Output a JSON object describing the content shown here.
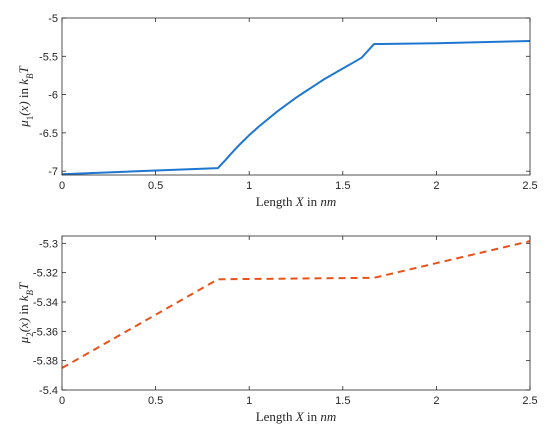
{
  "chart_data": [
    {
      "type": "line",
      "title": "",
      "xlabel": {
        "prefix": "Length ",
        "var": "X",
        "mid": " in ",
        "unit": "nm"
      },
      "ylabel": {
        "func": "μ",
        "sub": "1",
        "arg": "(x)",
        "mid": " in ",
        "k": "k",
        "ksub": "B",
        "T": "T"
      },
      "xlim": [
        0,
        2.5
      ],
      "ylim": [
        -7.05,
        -5
      ],
      "xticks": [
        0,
        0.5,
        1,
        1.5,
        2,
        2.5
      ],
      "xtick_labels": [
        "0",
        "0.5",
        "1",
        "1.5",
        "2",
        "2.5"
      ],
      "yticks": [
        -7,
        -6.5,
        -6,
        -5.5,
        -5
      ],
      "ytick_labels": [
        "-7",
        "-6.5",
        "-6",
        "-5.5",
        "-5"
      ],
      "grid": false,
      "series": [
        {
          "color": "#1f77d0",
          "dash": "solid",
          "x": [
            0,
            0.833,
            0.875,
            0.9,
            0.95,
            1.0,
            1.05,
            1.1,
            1.15,
            1.2,
            1.25,
            1.3,
            1.35,
            1.4,
            1.45,
            1.5,
            1.55,
            1.6,
            1.667,
            2.0,
            2.5
          ],
          "y": [
            -7.04,
            -6.96,
            -6.85,
            -6.78,
            -6.65,
            -6.53,
            -6.42,
            -6.32,
            -6.22,
            -6.13,
            -6.04,
            -5.96,
            -5.88,
            -5.8,
            -5.73,
            -5.66,
            -5.59,
            -5.52,
            -5.34,
            -5.33,
            -5.3
          ]
        }
      ]
    },
    {
      "type": "line",
      "title": "",
      "xlabel": {
        "prefix": "Length ",
        "var": "X",
        "mid": " in ",
        "unit": "nm"
      },
      "ylabel": {
        "func": "μ",
        "sub": "2",
        "arg": "(x)",
        "mid": " in ",
        "k": "k",
        "ksub": "B",
        "T": "T"
      },
      "xlim": [
        0,
        2.5
      ],
      "ylim": [
        -5.4,
        -5.295
      ],
      "xticks": [
        0,
        0.5,
        1,
        1.5,
        2,
        2.5
      ],
      "xtick_labels": [
        "0",
        "0.5",
        "1",
        "1.5",
        "2",
        "2.5"
      ],
      "yticks": [
        -5.4,
        -5.38,
        -5.36,
        -5.34,
        -5.32,
        -5.3
      ],
      "ytick_labels": [
        "-5.4",
        "-5.38",
        "-5.36",
        "-5.34",
        "-5.32",
        "-5.3"
      ],
      "grid": false,
      "series": [
        {
          "color": "#e8531c",
          "dash": "dashed",
          "x": [
            0,
            0.833,
            1.667,
            2.5
          ],
          "y": [
            -5.385,
            -5.3245,
            -5.3235,
            -5.2985
          ]
        }
      ]
    }
  ]
}
